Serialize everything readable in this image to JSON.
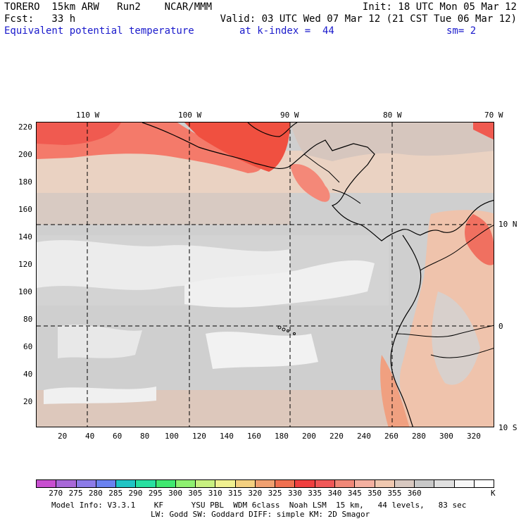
{
  "header": {
    "model_line": "TORERO  15km ARW   Run2    NCAR/MMM",
    "init": "Init: 18 UTC Mon 05 Mar 12",
    "fcst": "Fcst:   33 h",
    "valid": "Valid: 03 UTC Wed 07 Mar 12 (21 CST Tue 06 Mar 12)",
    "field": "Equivalent potential temperature",
    "level": "at k-index =  44",
    "smooth": "sm= 2"
  },
  "map": {
    "lon_labels": [
      "110 W",
      "100 W",
      "90 W",
      "80 W",
      "70 W"
    ],
    "lat_labels": [
      "10 N",
      "0",
      "10 S"
    ],
    "x_ticks": [
      "20",
      "40",
      "60",
      "80",
      "100",
      "120",
      "140",
      "160",
      "180",
      "200",
      "220",
      "240",
      "260",
      "280",
      "300",
      "320"
    ],
    "y_ticks": [
      "220",
      "200",
      "180",
      "160",
      "140",
      "120",
      "100",
      "80",
      "60",
      "40",
      "20"
    ],
    "grid_x_range": [
      0,
      335
    ],
    "grid_y_range": [
      0,
      223
    ],
    "colors": {
      "land_line": "#000000",
      "background": "#cfcfcf"
    }
  },
  "colorbar": {
    "colors": [
      "#c84fd0",
      "#a868d8",
      "#8c7be8",
      "#6a82f0",
      "#20c4c4",
      "#28e0a0",
      "#40e870",
      "#8ef070",
      "#c8f080",
      "#f0f090",
      "#f4d080",
      "#f0a070",
      "#f07050",
      "#f04040",
      "#f05858",
      "#f08878",
      "#f4b0a0",
      "#f0c8b0",
      "#d8c8c0",
      "#c8c8c8",
      "#e0e0e0",
      "#f8f8f8",
      "#ffffff"
    ],
    "labels": [
      "270",
      "275",
      "280",
      "285",
      "290",
      "295",
      "300",
      "305",
      "310",
      "315",
      "320",
      "325",
      "330",
      "335",
      "340",
      "345",
      "350",
      "355",
      "360"
    ],
    "unit": "K"
  },
  "footer": {
    "line1": "Model Info: V3.3.1    KF      YSU PBL  WDM 6class  Noah LSM  15 km,   44 levels,   83 sec",
    "line2": "LW: Godd SW: Goddard DIFF: simple KM: 2D Smagor"
  }
}
